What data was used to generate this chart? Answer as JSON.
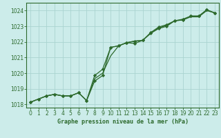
{
  "title": "Graphe pression niveau de la mer (hPa)",
  "background_color": "#ccecea",
  "grid_color": "#aad4d0",
  "line_color": "#2d6a2d",
  "marker_color": "#2d6a2d",
  "xlim": [
    -0.5,
    23.5
  ],
  "ylim": [
    1017.8,
    1024.5
  ],
  "yticks": [
    1018,
    1019,
    1020,
    1021,
    1022,
    1023,
    1024
  ],
  "xticks": [
    0,
    1,
    2,
    3,
    4,
    5,
    6,
    7,
    8,
    9,
    10,
    11,
    12,
    13,
    14,
    15,
    16,
    17,
    18,
    19,
    20,
    21,
    22,
    23
  ],
  "line1_x": [
    0,
    1,
    2,
    3,
    4,
    5,
    6,
    7,
    8,
    9,
    10,
    11,
    12,
    13,
    14,
    15,
    16,
    17,
    18,
    19,
    20,
    21,
    22,
    23
  ],
  "line1_y": [
    1018.15,
    1018.35,
    1018.55,
    1018.65,
    1018.55,
    1018.55,
    1018.75,
    1018.25,
    1019.5,
    1019.85,
    1021.65,
    1021.75,
    1021.95,
    1021.9,
    1022.1,
    1022.55,
    1022.85,
    1023.0,
    1023.35,
    1023.4,
    1023.65,
    1023.65,
    1024.05,
    1023.85
  ],
  "line2_x": [
    0,
    1,
    2,
    3,
    4,
    5,
    6,
    7,
    8,
    9,
    10,
    11,
    12,
    13,
    14,
    15,
    16,
    17,
    18,
    19,
    20,
    21,
    22,
    23
  ],
  "line2_y": [
    1018.15,
    1018.35,
    1018.55,
    1018.65,
    1018.55,
    1018.55,
    1018.75,
    1018.25,
    1019.85,
    1020.25,
    1021.65,
    1021.75,
    1021.95,
    1022.05,
    1022.1,
    1022.6,
    1022.95,
    1023.1,
    1023.35,
    1023.45,
    1023.65,
    1023.65,
    1024.05,
    1023.85
  ],
  "line3_x": [
    0,
    1,
    2,
    3,
    4,
    5,
    6,
    7,
    8,
    9,
    10,
    11,
    12,
    13,
    14,
    15,
    16,
    17,
    18,
    19,
    20,
    21,
    22,
    23
  ],
  "line3_y": [
    1018.15,
    1018.35,
    1018.55,
    1018.65,
    1018.55,
    1018.55,
    1018.75,
    1018.25,
    1019.65,
    1020.0,
    1021.1,
    1021.75,
    1021.95,
    1022.05,
    1022.1,
    1022.55,
    1022.9,
    1023.05,
    1023.35,
    1023.4,
    1023.6,
    1023.6,
    1024.0,
    1023.85
  ]
}
